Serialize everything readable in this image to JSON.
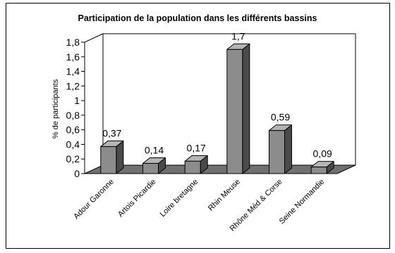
{
  "chart_data": {
    "type": "bar",
    "title": "Participation de la population dans les différents bassins",
    "xlabel": "",
    "ylabel": "% de participants",
    "categories": [
      "Adour Garonne",
      "Artois Picardie",
      "Loire bretagne",
      "Rhin Meuse",
      "Rhône Méd & Corse",
      "Seine Normandie"
    ],
    "values": [
      0.37,
      0.14,
      0.17,
      1.7,
      0.59,
      0.09
    ],
    "data_labels": [
      "0,37",
      "0,14",
      "0,17",
      "1,7",
      "0,59",
      "0,09"
    ],
    "ylim": [
      0,
      1.8
    ],
    "yticks": [
      0,
      0.2,
      0.4,
      0.6,
      0.8,
      1,
      1.2,
      1.4,
      1.6,
      1.8
    ],
    "ytick_labels": [
      "0",
      "0,2",
      "0,4",
      "0,6",
      "0,8",
      "1",
      "1,2",
      "1,4",
      "1,6",
      "1,8"
    ],
    "grid": false,
    "legend": "none",
    "style": "3d",
    "colors": {
      "bar_front": "#8c8c8c",
      "bar_side": "#4a4a4a",
      "bar_top": "#b4b4b4",
      "floor": "#707070",
      "frame": "#000000"
    }
  }
}
